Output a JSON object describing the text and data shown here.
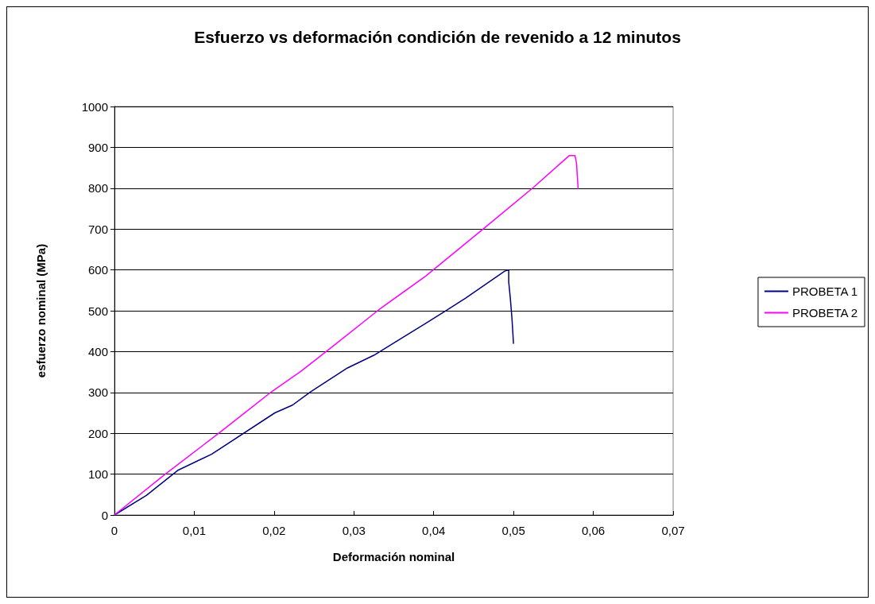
{
  "chart_data": {
    "type": "line",
    "title": "Esfuerzo vs deformación condición de revenido a 12 minutos",
    "xlabel": "Deformación nominal",
    "ylabel": "esfuerzo nominal (MPa)",
    "xlim": [
      0,
      0.07
    ],
    "xticks": [
      0,
      {
        "value": 0.01,
        "label": "0,01"
      },
      {
        "value": 0.02,
        "label": "0,02"
      },
      {
        "value": 0.03,
        "label": "0,03"
      },
      {
        "value": 0.04,
        "label": "0,04"
      },
      {
        "value": 0.05,
        "label": "0,05"
      },
      {
        "value": 0.06,
        "label": "0,06"
      },
      {
        "value": 0.07,
        "label": "0,07"
      }
    ],
    "ylim": [
      0,
      1000
    ],
    "yticks": [
      0,
      100,
      200,
      300,
      400,
      500,
      600,
      700,
      800,
      900,
      1000
    ],
    "grid": "y",
    "legend": "right",
    "marker": "none",
    "line_style": "solid",
    "series": [
      {
        "name": "PROBETA 1",
        "color": "#000080",
        "x": [
          0,
          0.004,
          0.008,
          0.0122,
          0.0201,
          0.0223,
          0.0246,
          0.0292,
          0.0325,
          0.039,
          0.0417,
          0.044,
          0.0489,
          0.0494,
          0.0494,
          0.0496,
          0.0498,
          0.05
        ],
        "values": [
          0,
          48,
          110,
          149,
          250,
          269,
          302,
          360,
          391,
          469,
          502,
          531,
          597,
          600,
          570,
          531,
          483,
          419
        ]
      },
      {
        "name": "PROBETA 2",
        "color": "#ff00ff",
        "x": [
          0,
          0.0063,
          0.0132,
          0.0197,
          0.0233,
          0.0256,
          0.0275,
          0.0331,
          0.039,
          0.0462,
          0.0525,
          0.057,
          0.0577,
          0.0579,
          0.058,
          0.0581
        ],
        "values": [
          0,
          99,
          202,
          302,
          351,
          386,
          415,
          502,
          585,
          700,
          802,
          880,
          880,
          860,
          828,
          798
        ]
      }
    ]
  }
}
